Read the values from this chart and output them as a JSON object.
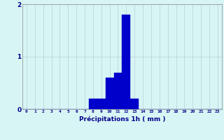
{
  "hours": [
    0,
    1,
    2,
    3,
    4,
    5,
    6,
    7,
    8,
    9,
    10,
    11,
    12,
    13,
    14,
    15,
    16,
    17,
    18,
    19,
    20,
    21,
    22,
    23
  ],
  "values": [
    0,
    0,
    0,
    0,
    0,
    0,
    0,
    0,
    0.2,
    0.2,
    0.6,
    0.7,
    1.8,
    0.2,
    0,
    0,
    0,
    0,
    0,
    0,
    0,
    0,
    0,
    0
  ],
  "bar_color": "#0000cc",
  "bar_edge_color": "#0000bb",
  "background_color": "#d8f5f5",
  "grid_color": "#b8d0d0",
  "axis_color": "#888888",
  "xlabel": "Précipitations 1h ( mm )",
  "xlabel_color": "#00008b",
  "tick_color": "#00008b",
  "ylim": [
    0,
    2
  ],
  "yticks": [
    0,
    1,
    2
  ],
  "xlim": [
    -0.5,
    23.5
  ]
}
